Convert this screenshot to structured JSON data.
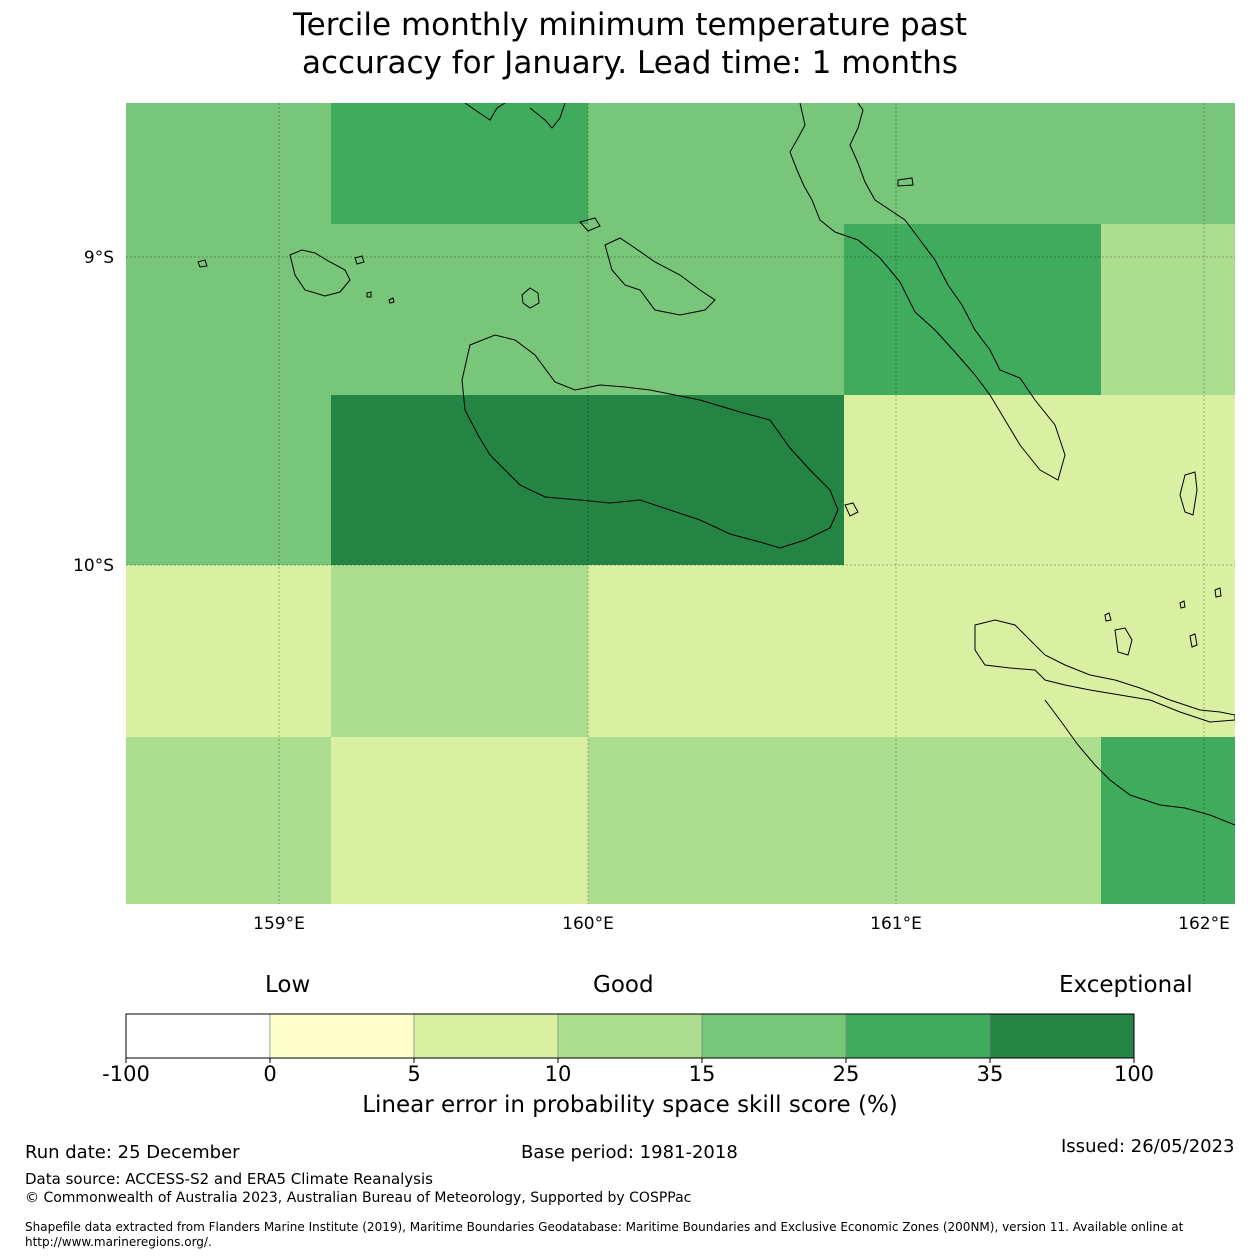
{
  "title_line1": "Tercile monthly minimum temperature past",
  "title_line2": "accuracy for January. Lead time: 1 months",
  "map": {
    "lat_labels": [
      "9°S",
      "10°S"
    ],
    "lon_labels": [
      "159°E",
      "160°E",
      "161°E",
      "162°E"
    ],
    "grid_columns": [
      {
        "from": "158.5°E",
        "to": "159.17°E"
      },
      {
        "from": "159.17°E",
        "to": "160.0°E"
      },
      {
        "from": "160.0°E",
        "to": "160.83°E"
      },
      {
        "from": "160.83°E",
        "to": "161.67°E"
      },
      {
        "from": "161.67°E",
        "to": "162.1°E"
      }
    ],
    "grid_rows": [
      {
        "from": "8.5°S",
        "to": "8.9°S"
      },
      {
        "from": "8.9°S",
        "to": "9.45°S"
      },
      {
        "from": "9.45°S",
        "to": "10.0°S"
      },
      {
        "from": "10.0°S",
        "to": "10.55°S"
      },
      {
        "from": "10.55°S",
        "to": "11.1°S"
      }
    ],
    "cell_levels": [
      [
        4,
        5,
        4,
        4,
        4
      ],
      [
        4,
        4,
        4,
        5,
        3
      ],
      [
        4,
        6,
        6,
        2,
        2
      ],
      [
        2,
        3,
        2,
        2,
        2
      ],
      [
        3,
        2,
        3,
        3,
        5
      ]
    ]
  },
  "colorbar": {
    "category_low": "Low",
    "category_good": "Good",
    "category_exceptional": "Exceptional",
    "ticks": [
      "-100",
      "0",
      "5",
      "10",
      "15",
      "25",
      "35",
      "100"
    ],
    "colors": [
      "#ffffff",
      "#ffffcc",
      "#d9f0a3",
      "#addd8e",
      "#78c679",
      "#41ab5d",
      "#238443"
    ],
    "label": "Linear error in probability space skill score (%)"
  },
  "footer": {
    "run_date": "Run date: 25 December",
    "base_period": "Base period: 1981-2018",
    "issued": "Issued: 26/05/2023",
    "data_source": "Data source: ACCESS-S2 and ERA5 Climate Reanalysis",
    "copyright": "© Commonwealth of Australia 2023, Australian Bureau of Meteorology, Supported by COSPPac",
    "shapefile_note": "Shapefile data extracted from Flanders Marine Institute (2019), Maritime Boundaries Geodatabase: Maritime Boundaries and Exclusive Economic Zones (200NM), version 11. Available online at http://www.marineregions.org/."
  }
}
